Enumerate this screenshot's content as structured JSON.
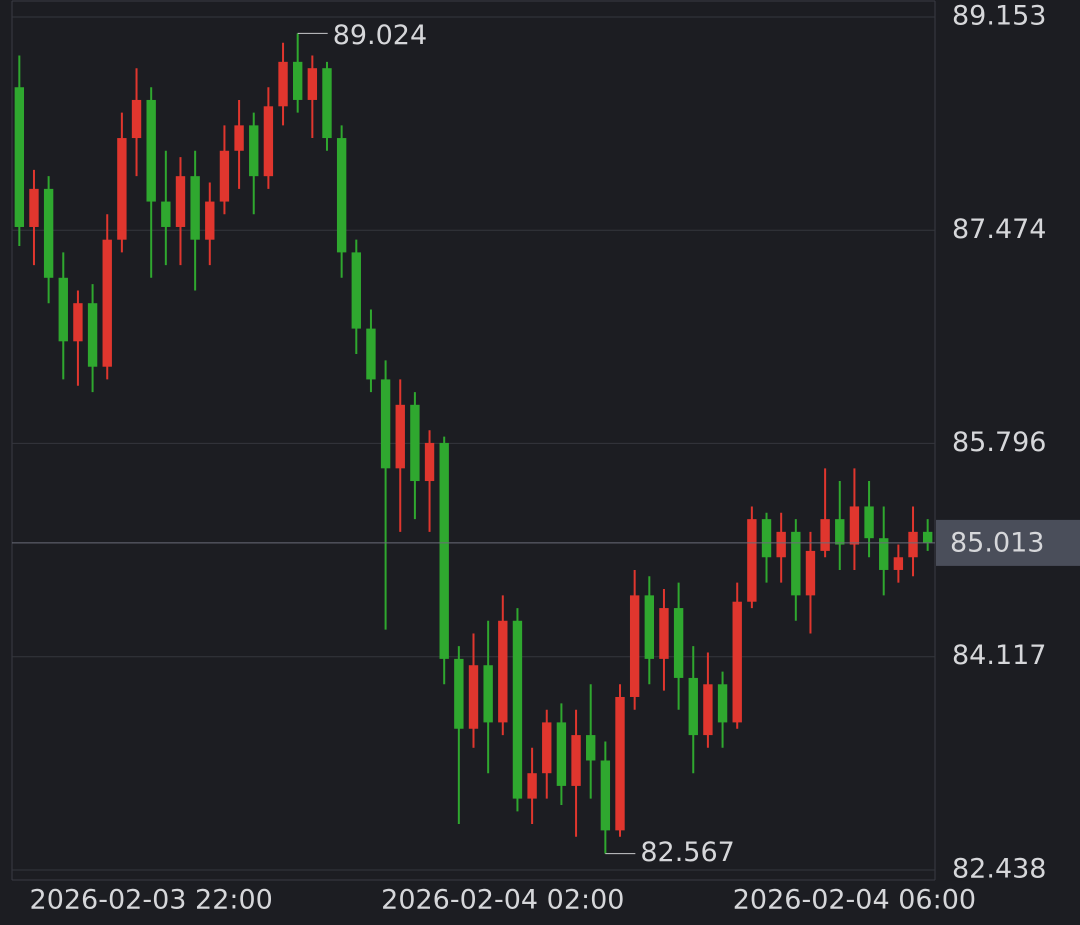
{
  "chart_data": {
    "type": "candlestick",
    "categories": [
      null,
      null,
      null,
      null,
      null,
      null,
      null,
      null,
      null,
      "2026-02-03 22:00",
      null,
      null,
      null,
      null,
      null,
      null,
      null,
      null,
      null,
      null,
      null,
      null,
      null,
      null,
      null,
      null,
      null,
      null,
      null,
      null,
      null,
      null,
      null,
      "2026-02-04 02:00",
      null,
      null,
      null,
      null,
      null,
      null,
      null,
      null,
      null,
      null,
      null,
      null,
      null,
      null,
      null,
      null,
      null,
      null,
      null,
      null,
      null,
      null,
      null,
      "2026-02-04 06:00",
      null,
      null,
      null,
      null,
      null
    ],
    "open": [
      88.6,
      87.5,
      87.8,
      87.1,
      86.6,
      86.9,
      86.4,
      87.4,
      88.2,
      88.5,
      87.7,
      87.5,
      87.9,
      87.4,
      87.7,
      88.1,
      88.3,
      87.9,
      88.45,
      88.8,
      88.5,
      88.75,
      88.2,
      87.3,
      86.7,
      86.3,
      85.6,
      86.1,
      85.5,
      85.8,
      84.1,
      83.55,
      84.05,
      83.6,
      84.4,
      83.0,
      83.2,
      83.6,
      83.1,
      83.5,
      83.3,
      82.75,
      83.8,
      84.6,
      84.1,
      84.5,
      83.95,
      83.5,
      83.9,
      83.6,
      84.55,
      85.2,
      84.9,
      85.1,
      84.6,
      84.95,
      85.2,
      85.0,
      85.3,
      85.05,
      84.8,
      84.9,
      85.1
    ],
    "high": [
      88.85,
      87.95,
      87.9,
      87.3,
      87.0,
      87.05,
      87.6,
      88.4,
      88.75,
      88.6,
      88.1,
      88.05,
      88.1,
      87.85,
      88.3,
      88.5,
      88.4,
      88.6,
      88.95,
      89.024,
      88.85,
      88.8,
      88.3,
      87.4,
      86.85,
      86.45,
      86.3,
      86.2,
      85.9,
      85.85,
      84.2,
      84.3,
      84.4,
      84.6,
      84.5,
      83.4,
      83.7,
      83.75,
      83.7,
      83.9,
      83.45,
      83.9,
      84.8,
      84.75,
      84.65,
      84.7,
      84.2,
      84.15,
      84.0,
      84.7,
      85.3,
      85.25,
      85.25,
      85.2,
      85.1,
      85.6,
      85.5,
      85.6,
      85.5,
      85.3,
      85.0,
      85.3,
      85.2
    ],
    "low": [
      87.35,
      87.2,
      86.9,
      86.3,
      86.25,
      86.2,
      86.3,
      87.3,
      87.9,
      87.1,
      87.2,
      87.2,
      87.0,
      87.2,
      87.6,
      87.8,
      87.6,
      87.8,
      88.3,
      88.4,
      88.2,
      88.1,
      87.1,
      86.5,
      86.2,
      84.33,
      85.1,
      85.2,
      85.1,
      83.9,
      82.8,
      83.4,
      83.2,
      83.5,
      82.9,
      82.8,
      83.0,
      82.95,
      82.7,
      83.0,
      82.567,
      82.7,
      83.7,
      83.9,
      83.85,
      83.7,
      83.2,
      83.4,
      83.4,
      83.55,
      84.5,
      84.7,
      84.7,
      84.4,
      84.3,
      84.9,
      84.8,
      84.8,
      84.9,
      84.6,
      84.7,
      84.75,
      84.95
    ],
    "close": [
      87.5,
      87.8,
      87.1,
      86.6,
      86.9,
      86.4,
      87.4,
      88.2,
      88.5,
      87.7,
      87.5,
      87.9,
      87.4,
      87.7,
      88.1,
      88.3,
      87.9,
      88.45,
      88.8,
      88.5,
      88.75,
      88.2,
      87.3,
      86.7,
      86.3,
      85.6,
      86.1,
      85.5,
      85.8,
      84.1,
      83.55,
      84.05,
      83.6,
      84.4,
      83.0,
      83.2,
      83.6,
      83.1,
      83.5,
      83.3,
      82.75,
      83.8,
      84.6,
      84.1,
      84.5,
      83.95,
      83.5,
      83.9,
      83.6,
      84.55,
      85.2,
      84.9,
      85.1,
      84.6,
      84.95,
      85.2,
      85.0,
      85.3,
      85.05,
      84.8,
      84.9,
      85.1,
      85.013
    ],
    "up_color": "#e0362e",
    "down_color": "#2fa82f",
    "ylim": [
      82.438,
      89.153
    ],
    "yticks": [
      89.153,
      87.474,
      85.796,
      84.117,
      82.438
    ],
    "grid": true,
    "high_marker": 89.024,
    "low_marker": 82.567,
    "last_price": 85.013
  }
}
